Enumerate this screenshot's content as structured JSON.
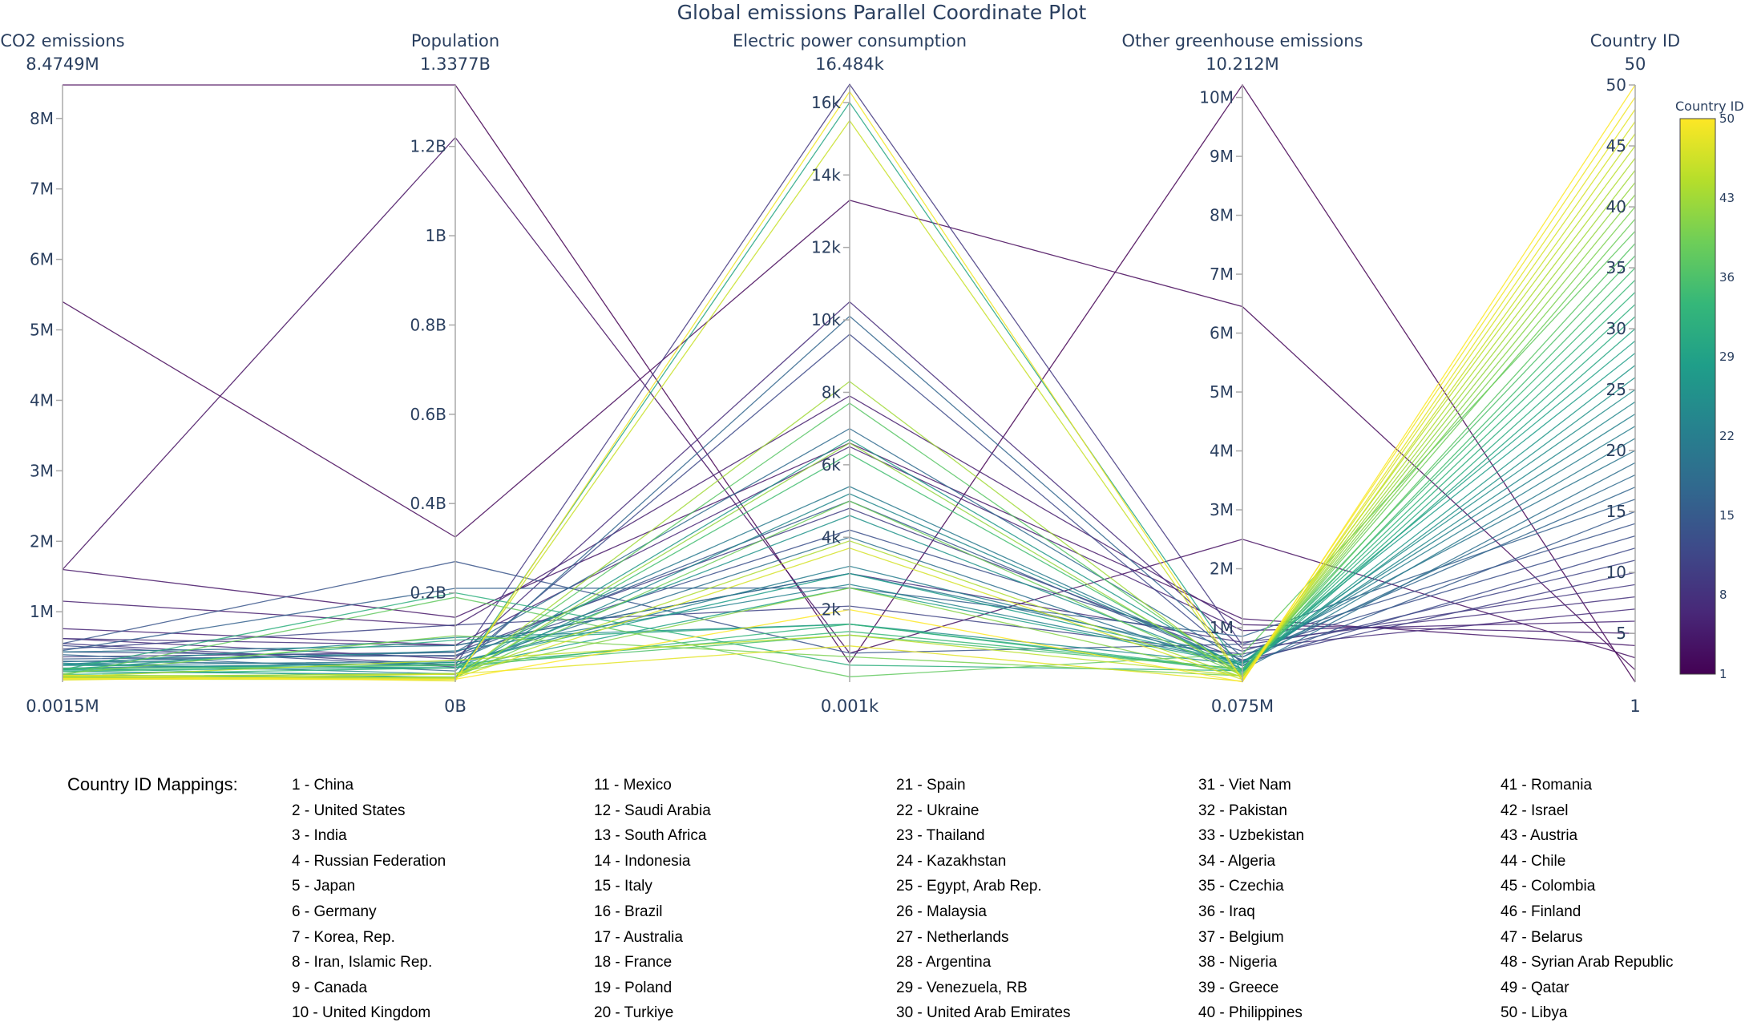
{
  "chart_data": {
    "type": "parallel_coordinates",
    "title": "Global emissions Parallel Coordinate Plot",
    "dimensions": [
      {
        "name": "CO2 emissions",
        "range": [
          0.0015,
          8.4749
        ],
        "min_label": "0.0015M",
        "max_label": "8.4749M",
        "ticks": [
          1,
          2,
          3,
          4,
          5,
          6,
          7,
          8
        ],
        "tick_labels": [
          "1M",
          "2M",
          "3M",
          "4M",
          "5M",
          "6M",
          "7M",
          "8M"
        ]
      },
      {
        "name": "Population",
        "range": [
          0,
          1.3377
        ],
        "min_label": "0B",
        "max_label": "1.3377B",
        "ticks": [
          0.2,
          0.4,
          0.6,
          0.8,
          1.0,
          1.2
        ],
        "tick_labels": [
          "0.2B",
          "0.4B",
          "0.6B",
          "0.8B",
          "1B",
          "1.2B"
        ]
      },
      {
        "name": "Electric power consumption",
        "range": [
          0.001,
          16.484
        ],
        "min_label": "0.001k",
        "max_label": "16.484k",
        "ticks": [
          2,
          4,
          6,
          8,
          10,
          12,
          14,
          16
        ],
        "tick_labels": [
          "2k",
          "4k",
          "6k",
          "8k",
          "10k",
          "12k",
          "14k",
          "16k"
        ]
      },
      {
        "name": "Other greenhouse emissions",
        "range": [
          0.075,
          10.212
        ],
        "min_label": "0.075M",
        "max_label": "10.212M",
        "ticks": [
          1,
          2,
          3,
          4,
          5,
          6,
          7,
          8,
          9,
          10
        ],
        "tick_labels": [
          "1M",
          "2M",
          "3M",
          "4M",
          "5M",
          "6M",
          "7M",
          "8M",
          "9M",
          "10M"
        ]
      },
      {
        "name": "Country ID",
        "range": [
          1,
          50
        ],
        "min_label": "1",
        "max_label": "50",
        "ticks": [
          5,
          10,
          15,
          20,
          25,
          30,
          35,
          40,
          45,
          50
        ],
        "tick_labels": [
          "5",
          "10",
          "15",
          "20",
          "25",
          "30",
          "35",
          "40",
          "45",
          "50"
        ]
      }
    ],
    "records": [
      [
        8.4749,
        1.3377,
        0.53,
        10.212,
        1
      ],
      [
        5.4,
        0.325,
        13.3,
        6.45,
        2
      ],
      [
        1.6,
        1.22,
        0.8,
        2.5,
        3
      ],
      [
        1.6,
        0.145,
        6.6,
        1.15,
        4
      ],
      [
        1.15,
        0.126,
        7.9,
        1.05,
        5
      ],
      [
        0.76,
        0.083,
        6.5,
        0.95,
        6
      ],
      [
        0.62,
        0.052,
        10.5,
        0.65,
        7
      ],
      [
        0.62,
        0.082,
        3.0,
        0.75,
        8
      ],
      [
        0.55,
        0.038,
        16.5,
        0.7,
        9
      ],
      [
        0.36,
        0.067,
        4.8,
        0.45,
        10
      ],
      [
        0.47,
        0.128,
        2.1,
        0.55,
        11
      ],
      [
        0.52,
        0.034,
        9.6,
        0.4,
        12
      ],
      [
        0.43,
        0.058,
        4.2,
        0.6,
        13
      ],
      [
        0.55,
        0.27,
        0.8,
        0.72,
        14
      ],
      [
        0.33,
        0.06,
        5.0,
        0.35,
        15
      ],
      [
        0.45,
        0.21,
        2.6,
        0.85,
        16
      ],
      [
        0.39,
        0.025,
        10.1,
        0.5,
        17
      ],
      [
        0.29,
        0.067,
        7.0,
        0.43,
        18
      ],
      [
        0.3,
        0.038,
        4.0,
        0.28,
        19
      ],
      [
        0.43,
        0.082,
        3.0,
        0.5,
        20
      ],
      [
        0.24,
        0.047,
        5.4,
        0.35,
        21
      ],
      [
        0.2,
        0.044,
        3.2,
        0.42,
        22
      ],
      [
        0.25,
        0.07,
        2.7,
        0.4,
        23
      ],
      [
        0.27,
        0.018,
        5.2,
        0.35,
        24
      ],
      [
        0.25,
        0.1,
        1.6,
        0.38,
        25
      ],
      [
        0.24,
        0.032,
        4.6,
        0.3,
        26
      ],
      [
        0.15,
        0.017,
        6.7,
        0.29,
        27
      ],
      [
        0.18,
        0.044,
        3.0,
        0.4,
        28
      ],
      [
        0.17,
        0.032,
        2.6,
        0.38,
        29
      ],
      [
        0.2,
        0.0094,
        16.0,
        0.25,
        30
      ],
      [
        0.18,
        0.094,
        1.6,
        0.25,
        31
      ],
      [
        0.18,
        0.2,
        0.47,
        0.27,
        32
      ],
      [
        0.11,
        0.032,
        1.6,
        0.28,
        33
      ],
      [
        0.15,
        0.04,
        1.4,
        0.3,
        34
      ],
      [
        0.1,
        0.0106,
        6.3,
        0.22,
        35
      ],
      [
        0.19,
        0.037,
        1.3,
        0.3,
        36
      ],
      [
        0.09,
        0.0113,
        7.7,
        0.2,
        37
      ],
      [
        0.1,
        0.19,
        0.15,
        0.55,
        38
      ],
      [
        0.065,
        0.0108,
        5.0,
        0.19,
        39
      ],
      [
        0.12,
        0.104,
        0.7,
        0.18,
        40
      ],
      [
        0.07,
        0.0197,
        2.6,
        0.17,
        41
      ],
      [
        0.065,
        0.0087,
        6.6,
        0.17,
        42
      ],
      [
        0.062,
        0.0088,
        8.3,
        0.16,
        43
      ],
      [
        0.085,
        0.018,
        3.9,
        0.16,
        44
      ],
      [
        0.075,
        0.049,
        1.3,
        0.18,
        45
      ],
      [
        0.045,
        0.0055,
        15.5,
        0.1,
        46
      ],
      [
        0.058,
        0.0095,
        3.7,
        0.12,
        47
      ],
      [
        0.03,
        0.018,
        1.0,
        0.09,
        48
      ],
      [
        0.1,
        0.0026,
        16.3,
        0.12,
        49
      ],
      [
        0.05,
        0.0065,
        2.0,
        0.08,
        50
      ]
    ],
    "colorbar": {
      "title": "Country ID",
      "min": 1,
      "max": 50,
      "ticks": [
        1,
        8,
        15,
        22,
        29,
        36,
        43,
        50
      ],
      "tick_labels": [
        "1",
        "8",
        "15",
        "22",
        "29",
        "36",
        "43",
        "50"
      ],
      "colorscale": [
        "#440154",
        "#482878",
        "#3e4989",
        "#31688e",
        "#26828e",
        "#1f9e89",
        "#35b779",
        "#6ece58",
        "#b5de2b",
        "#fde725"
      ]
    }
  },
  "mappings": {
    "title": "Country ID Mappings:",
    "columns": [
      [
        "1 - China",
        "2 - United States",
        "3 - India",
        "4 - Russian Federation",
        "5 - Japan",
        "6 - Germany",
        "7 - Korea, Rep.",
        "8 - Iran, Islamic Rep.",
        "9 - Canada",
        "10 - United Kingdom"
      ],
      [
        "11 - Mexico",
        "12 - Saudi Arabia",
        "13 - South Africa",
        "14 - Indonesia",
        "15 - Italy",
        "16 - Brazil",
        "17 - Australia",
        "18 - France",
        "19 - Poland",
        "20 - Turkiye"
      ],
      [
        "21 - Spain",
        "22 - Ukraine",
        "23 - Thailand",
        "24 - Kazakhstan",
        "25 - Egypt, Arab Rep.",
        "26 - Malaysia",
        "27 - Netherlands",
        "28 - Argentina",
        "29 - Venezuela, RB",
        "30 - United Arab Emirates"
      ],
      [
        "31 - Viet Nam",
        "32 - Pakistan",
        "33 - Uzbekistan",
        "34 - Algeria",
        "35 - Czechia",
        "36 - Iraq",
        "37 - Belgium",
        "38 - Nigeria",
        "39 - Greece",
        "40 - Philippines"
      ],
      [
        "41 - Romania",
        "42 - Israel",
        "43 - Austria",
        "44 - Chile",
        "45 - Colombia",
        "46 - Finland",
        "47 - Belarus",
        "48 - Syrian Arab Republic",
        "49 - Qatar",
        "50 - Libya"
      ]
    ]
  }
}
